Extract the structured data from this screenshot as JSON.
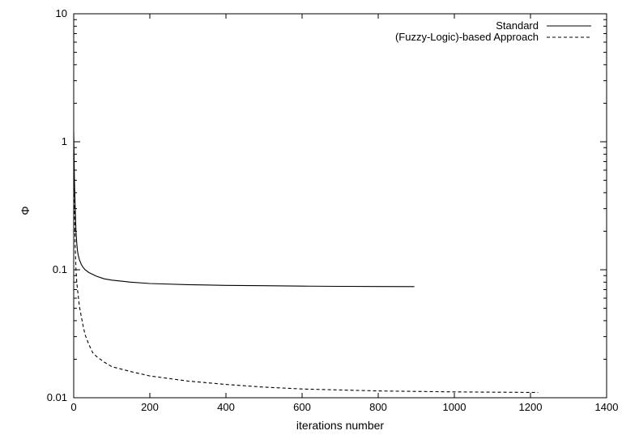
{
  "chart_data": {
    "type": "line",
    "title": "",
    "xlabel": "iterations number",
    "ylabel": "Φ",
    "xlim": [
      0,
      1400
    ],
    "ylim": [
      0.01,
      10
    ],
    "yscale": "log",
    "grid": false,
    "legend_position": "top-right",
    "x_ticks": [
      0,
      200,
      400,
      600,
      800,
      1000,
      1200,
      1400
    ],
    "x_tick_labels": [
      "0",
      "200",
      "400",
      "600",
      "800",
      "1000",
      "1200",
      "1400"
    ],
    "y_ticks": [
      0.01,
      0.1,
      1,
      10
    ],
    "y_tick_labels": [
      "0.01",
      "0.1",
      "1",
      "10"
    ],
    "series": [
      {
        "name": "Standard",
        "style": "solid",
        "color": "#000000",
        "x": [
          0,
          2,
          4,
          6,
          8,
          10,
          12,
          15,
          20,
          25,
          30,
          40,
          50,
          60,
          80,
          100,
          150,
          200,
          300,
          400,
          500,
          600,
          700,
          800,
          895
        ],
        "y": [
          1.2,
          0.5,
          0.3,
          0.2,
          0.16,
          0.14,
          0.13,
          0.12,
          0.11,
          0.104,
          0.1,
          0.095,
          0.092,
          0.089,
          0.085,
          0.083,
          0.08,
          0.078,
          0.0765,
          0.0755,
          0.075,
          0.0745,
          0.0742,
          0.074,
          0.0738
        ]
      },
      {
        "name": "(Fuzzy-Logic)-based Approach",
        "style": "dashed",
        "color": "#000000",
        "x": [
          0,
          2,
          4,
          6,
          8,
          10,
          15,
          20,
          25,
          30,
          40,
          50,
          60,
          80,
          100,
          150,
          200,
          300,
          400,
          500,
          600,
          800,
          1000,
          1220
        ],
        "y": [
          0.8,
          0.3,
          0.15,
          0.1,
          0.08,
          0.07,
          0.052,
          0.043,
          0.036,
          0.031,
          0.026,
          0.0225,
          0.021,
          0.019,
          0.0175,
          0.016,
          0.0148,
          0.0135,
          0.0127,
          0.0121,
          0.0117,
          0.0113,
          0.0111,
          0.011
        ]
      }
    ]
  }
}
